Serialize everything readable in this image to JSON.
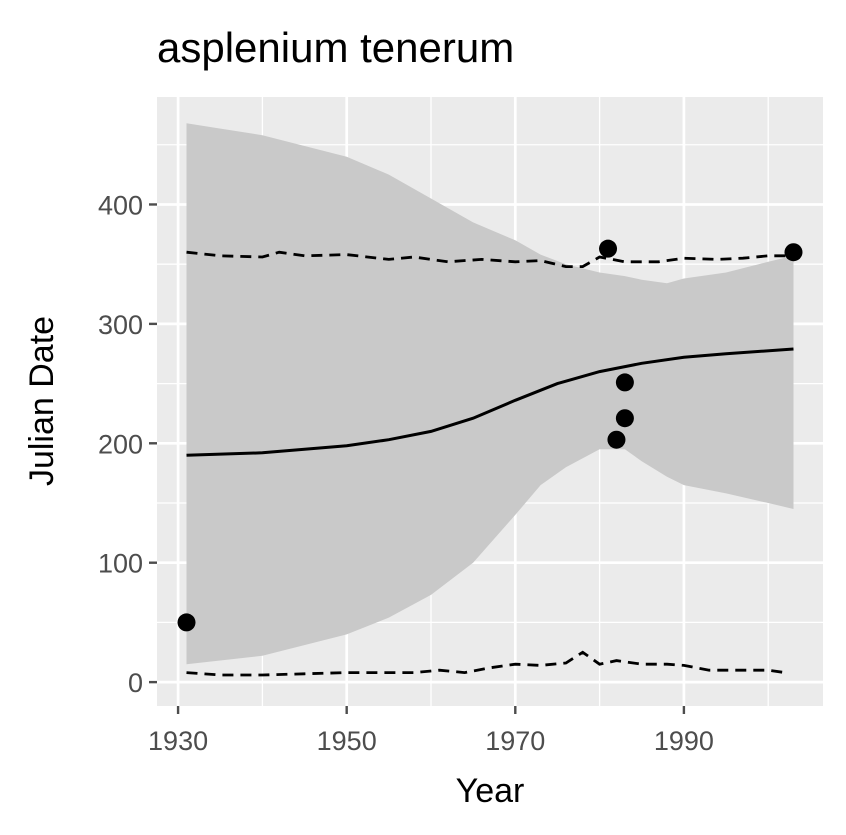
{
  "chart_data": {
    "type": "scatter",
    "title": "asplenium tenerum",
    "xlabel": "Year",
    "ylabel": "Julian Date",
    "xlim": [
      1927.5,
      2006.5
    ],
    "ylim": [
      -20,
      490
    ],
    "x_ticks": [
      1930,
      1950,
      1970,
      1990
    ],
    "y_ticks": [
      0,
      100,
      200,
      300,
      400
    ],
    "grid": true,
    "colors": {
      "panel": "#ebebeb",
      "grid": "#ffffff",
      "ribbon": "#c9c9c9",
      "line": "#000000",
      "points": "#000000",
      "ticks": "#4d4d4d"
    },
    "points": [
      {
        "x": 1931,
        "y": 50
      },
      {
        "x": 1981,
        "y": 363
      },
      {
        "x": 1982,
        "y": 203
      },
      {
        "x": 1983,
        "y": 251
      },
      {
        "x": 1983,
        "y": 221
      },
      {
        "x": 2003,
        "y": 360
      }
    ],
    "fit_line": {
      "x": [
        1931,
        1940,
        1950,
        1955,
        1960,
        1965,
        1970,
        1975,
        1980,
        1985,
        1990,
        1995,
        2003
      ],
      "y": [
        190,
        192,
        198,
        203,
        210,
        221,
        236,
        250,
        260,
        267,
        272,
        275,
        279
      ]
    },
    "ribbon": {
      "x": [
        1931,
        1940,
        1950,
        1955,
        1960,
        1965,
        1970,
        1973,
        1976,
        1980,
        1983,
        1985,
        1988,
        1990,
        1995,
        2000,
        2003
      ],
      "upper": [
        468,
        458,
        440,
        425,
        405,
        385,
        370,
        358,
        350,
        343,
        340,
        337,
        334,
        338,
        343,
        352,
        357
      ],
      "lower": [
        15,
        22,
        40,
        54,
        73,
        100,
        140,
        165,
        180,
        195,
        195,
        185,
        172,
        165,
        158,
        150,
        145
      ]
    },
    "upper_quantile": {
      "x": [
        1931,
        1935,
        1940,
        1942,
        1945,
        1950,
        1955,
        1958,
        1962,
        1966,
        1970,
        1973,
        1976,
        1978,
        1980,
        1983,
        1987,
        1990,
        1994,
        1997,
        2000,
        2003
      ],
      "y": [
        360,
        357,
        356,
        360,
        357,
        358,
        354,
        356,
        352,
        354,
        352,
        353,
        348,
        348,
        356,
        352,
        352,
        355,
        354,
        355,
        357,
        357
      ]
    },
    "lower_quantile": {
      "x": [
        1931,
        1935,
        1940,
        1945,
        1950,
        1955,
        1958,
        1961,
        1964,
        1967,
        1970,
        1973,
        1976,
        1978,
        1980,
        1982,
        1985,
        1988,
        1990,
        1993,
        1997,
        2000,
        2002
      ],
      "y": [
        8,
        6,
        6,
        7,
        8,
        8,
        8,
        10,
        8,
        12,
        15,
        14,
        16,
        25,
        15,
        18,
        15,
        15,
        14,
        10,
        10,
        10,
        8
      ]
    }
  }
}
